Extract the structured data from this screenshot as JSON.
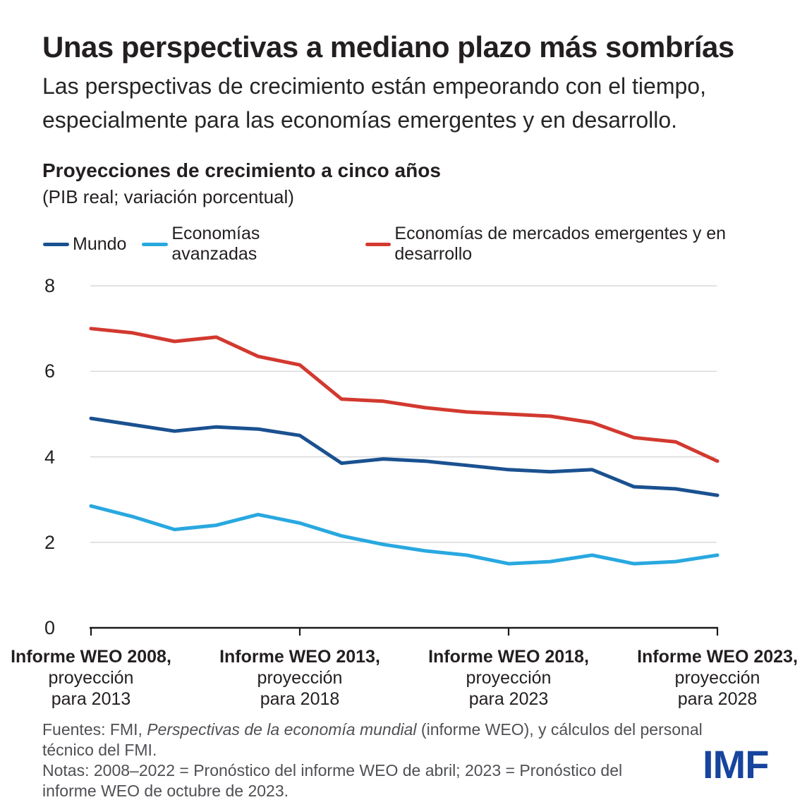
{
  "header": {
    "title": "Unas perspectivas a mediano plazo más sombrías",
    "subtitle_line1": "Las perspectivas de crecimiento están empeorando con el tiempo,",
    "subtitle_line2": "especialmente para las economías emergentes y en desarrollo."
  },
  "chart_data": {
    "type": "line",
    "title": "Proyecciones de crecimiento a cinco años",
    "units": "(PIB real; variación porcentual)",
    "x_vintage_years": [
      2008,
      2009,
      2010,
      2011,
      2012,
      2013,
      2014,
      2015,
      2016,
      2017,
      2018,
      2019,
      2020,
      2021,
      2022,
      2023
    ],
    "ylim": [
      0,
      8
    ],
    "y_ticks": [
      0,
      2,
      4,
      6,
      8
    ],
    "grid": "horizontal",
    "legend_position": "top-left",
    "colors": {
      "grid": "#d9d9d9",
      "axis": "#1a1a1a"
    },
    "series": [
      {
        "name": "Mundo",
        "slug": "mundo",
        "color": "#1a5190",
        "values": [
          4.9,
          4.75,
          4.6,
          4.7,
          4.65,
          4.5,
          3.85,
          3.95,
          3.9,
          3.8,
          3.7,
          3.65,
          3.7,
          3.3,
          3.25,
          3.1
        ]
      },
      {
        "name": "Economías avanzadas",
        "slug": "economias-avanzadas",
        "color": "#29a8e0",
        "values": [
          2.85,
          2.6,
          2.3,
          2.4,
          2.65,
          2.45,
          2.15,
          1.95,
          1.8,
          1.7,
          1.5,
          1.55,
          1.7,
          1.5,
          1.55,
          1.7
        ]
      },
      {
        "name": "Economías de mercados emergentes y en desarrollo",
        "slug": "emergentes-y-en-desarrollo",
        "color": "#d2392f",
        "values": [
          7.0,
          6.9,
          6.7,
          6.8,
          6.35,
          6.15,
          5.35,
          5.3,
          5.15,
          5.05,
          5.0,
          4.95,
          4.8,
          4.45,
          4.35,
          3.9
        ]
      }
    ],
    "x_tick_labels": [
      {
        "year": 2008,
        "line1": "Informe WEO 2008,",
        "line2": "proyección",
        "line3": "para 2013"
      },
      {
        "year": 2013,
        "line1": "Informe WEO 2013,",
        "line2": "proyección",
        "line3": "para 2018"
      },
      {
        "year": 2018,
        "line1": "Informe WEO 2018,",
        "line2": "proyección",
        "line3": "para 2023"
      },
      {
        "year": 2023,
        "line1": "Informe WEO 2023,",
        "line2": "proyección",
        "line3": "para 2028"
      }
    ]
  },
  "footer": {
    "sources_prefix": "Fuentes: FMI, ",
    "sources_italic": "Perspectivas de la economía mundial",
    "sources_suffix_line1": " (informe WEO), y cálculos del personal",
    "sources_line2": "técnico del FMI.",
    "notes_line1": "Notas: 2008–2022 = Pronóstico del informe WEO de abril; 2023 = Pronóstico del",
    "notes_line2": "informe WEO de octubre de 2023.",
    "logo": "IMF"
  }
}
